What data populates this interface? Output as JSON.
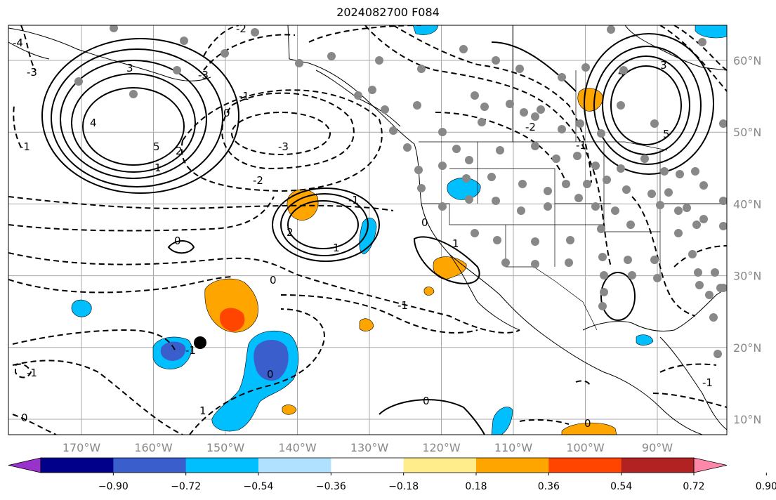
{
  "title": "2024082700 F084",
  "map": {
    "lon_ticks": [
      -170,
      -160,
      -150,
      -140,
      -130,
      -120,
      -110,
      -100,
      -90
    ],
    "lon_labels": [
      "170°W",
      "160°W",
      "150°W",
      "140°W",
      "130°W",
      "120°W",
      "110°W",
      "100°W",
      "90°W"
    ],
    "lat_ticks": [
      10,
      20,
      30,
      40,
      50,
      60
    ],
    "lat_labels": [
      "10°N",
      "20°N",
      "30°N",
      "40°N",
      "50°N",
      "60°N"
    ],
    "grid": true,
    "contour_labels": [
      "-4",
      "-3",
      "3",
      "-3",
      "4",
      "5",
      "-2",
      "-1",
      "0",
      "1",
      "2",
      "-2",
      "-1",
      "-1",
      "0",
      "1",
      "0",
      "-1",
      "-3",
      "3",
      "4",
      "5",
      "-1",
      "-2",
      "2",
      "1",
      "0",
      "-1",
      "0",
      "-1",
      "0",
      "1",
      "0",
      "-1",
      "0"
    ],
    "station_marker": "black-dot"
  },
  "colorbar": {
    "ticks": [
      "−0.90",
      "−0.72",
      "−0.54",
      "−0.36",
      "−0.18",
      "0.18",
      "0.36",
      "0.54",
      "0.72",
      "0.90"
    ],
    "colors": [
      "#9932cc",
      "#00008b",
      "#3a5fcd",
      "#00bfff",
      "#b0e2ff",
      "#ffffff",
      "#ffec8b",
      "#ffa500",
      "#ff4500",
      "#b22222",
      "#ff88aa"
    ]
  }
}
